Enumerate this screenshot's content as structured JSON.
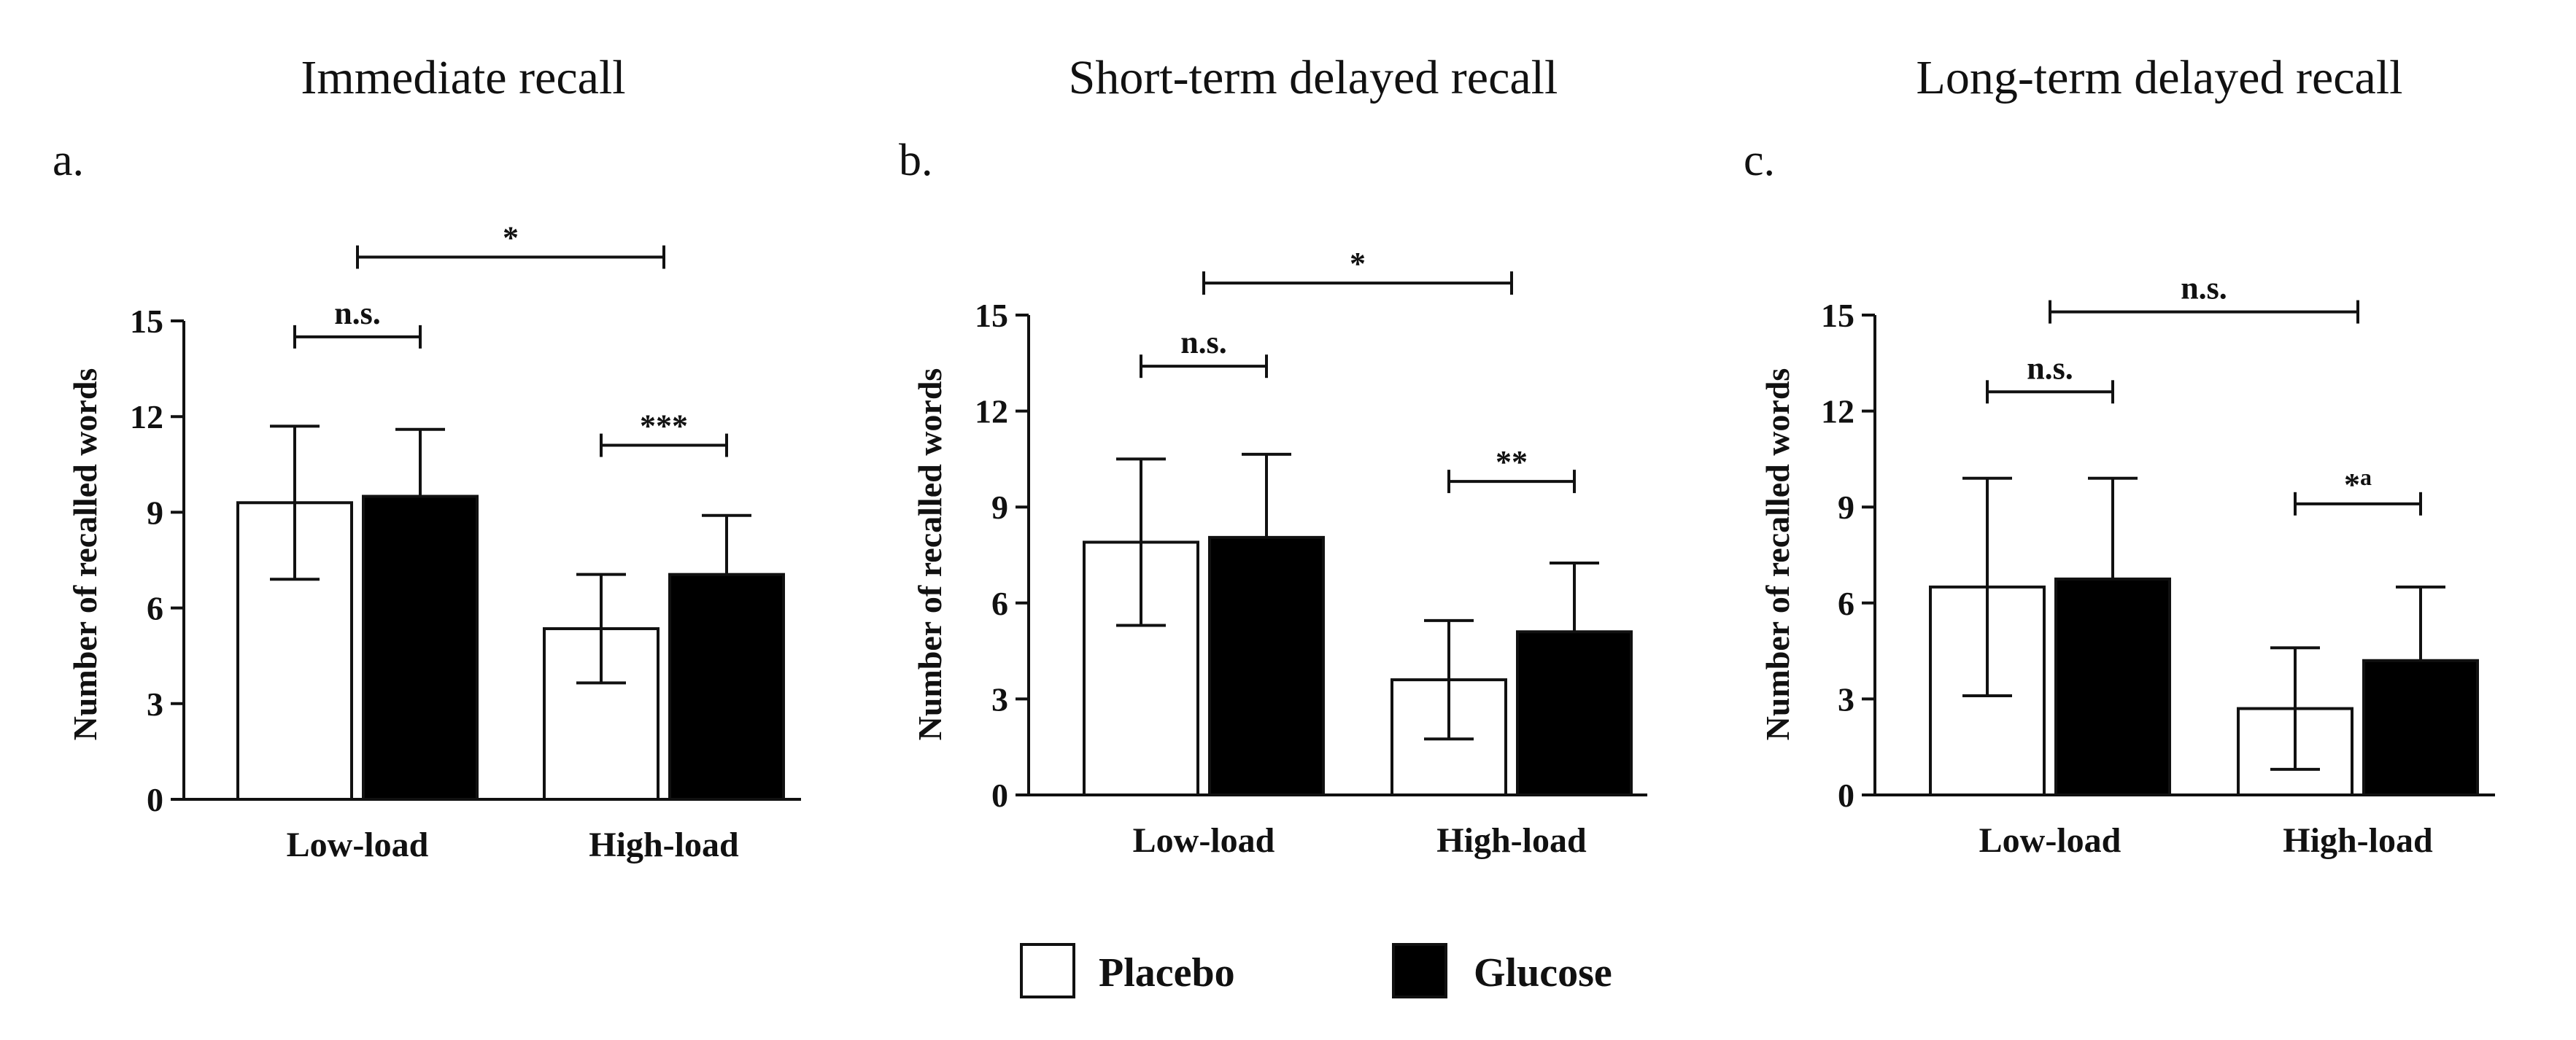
{
  "legend": {
    "items": [
      {
        "label": "Placebo",
        "color": "#ffffff"
      },
      {
        "label": "Glucose",
        "color": "#000000"
      }
    ]
  },
  "chart_data": [
    {
      "type": "bar",
      "panel": "a.",
      "title": "Immediate recall",
      "ylabel": "Number of recalled words",
      "xlabel": "",
      "ylim": [
        0,
        15
      ],
      "yticks": [
        0,
        3,
        6,
        9,
        12,
        15
      ],
      "categories": [
        "Low-load",
        "High-load"
      ],
      "series": [
        {
          "name": "Placebo",
          "values": [
            9.3,
            5.35
          ],
          "errors": [
            2.4,
            1.7
          ]
        },
        {
          "name": "Glucose",
          "values": [
            9.5,
            7.05
          ],
          "errors": [
            2.1,
            1.85
          ]
        }
      ],
      "annotations": [
        {
          "label": "*",
          "sup": "",
          "from": [
            0,
            0.5
          ],
          "to": [
            1,
            0.5
          ],
          "y": 17.0
        },
        {
          "label": "n.s.",
          "sup": "",
          "from": [
            0,
            0
          ],
          "to": [
            0,
            1
          ],
          "y": 14.5
        },
        {
          "label": "***",
          "sup": "",
          "from": [
            1,
            0
          ],
          "to": [
            1,
            1
          ],
          "y": 11.1
        }
      ]
    },
    {
      "type": "bar",
      "panel": "b.",
      "title": "Short-term delayed recall",
      "ylabel": "Number of recalled words",
      "xlabel": "",
      "ylim": [
        0,
        15
      ],
      "yticks": [
        0,
        3,
        6,
        9,
        12,
        15
      ],
      "categories": [
        "Low-load",
        "High-load"
      ],
      "series": [
        {
          "name": "Placebo",
          "values": [
            7.9,
            3.6
          ],
          "errors": [
            2.6,
            1.85
          ]
        },
        {
          "name": "Glucose",
          "values": [
            8.05,
            5.1
          ],
          "errors": [
            2.6,
            2.15
          ]
        }
      ],
      "annotations": [
        {
          "label": "*",
          "sup": "",
          "from": [
            0,
            0.5
          ],
          "to": [
            1,
            0.5
          ],
          "y": 16.0
        },
        {
          "label": "n.s.",
          "sup": "",
          "from": [
            0,
            0
          ],
          "to": [
            0,
            1
          ],
          "y": 13.4
        },
        {
          "label": "**",
          "sup": "",
          "from": [
            1,
            0
          ],
          "to": [
            1,
            1
          ],
          "y": 9.8
        }
      ]
    },
    {
      "type": "bar",
      "panel": "c.",
      "title": "Long-term delayed recall",
      "ylabel": "Number of recalled words",
      "xlabel": "",
      "ylim": [
        0,
        15
      ],
      "yticks": [
        0,
        3,
        6,
        9,
        12,
        15
      ],
      "categories": [
        "Low-load",
        "High-load"
      ],
      "series": [
        {
          "name": "Placebo",
          "values": [
            6.5,
            2.7
          ],
          "errors": [
            3.4,
            1.9
          ]
        },
        {
          "name": "Glucose",
          "values": [
            6.75,
            4.2
          ],
          "errors": [
            3.15,
            2.3
          ]
        }
      ],
      "annotations": [
        {
          "label": "n.s.",
          "sup": "",
          "from": [
            0,
            0.5
          ],
          "to": [
            1,
            0.5
          ],
          "y": 15.1
        },
        {
          "label": "n.s.",
          "sup": "",
          "from": [
            0,
            0
          ],
          "to": [
            0,
            1
          ],
          "y": 12.6
        },
        {
          "label": "*",
          "sup": "a",
          "from": [
            1,
            0
          ],
          "to": [
            1,
            1
          ],
          "y": 9.1
        }
      ]
    }
  ]
}
